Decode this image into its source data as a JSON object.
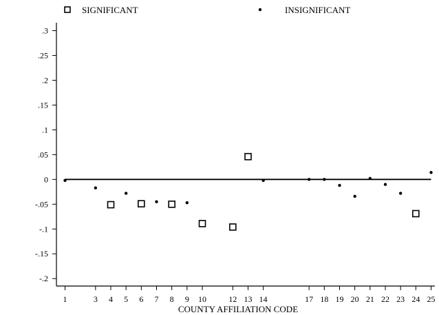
{
  "legend": {
    "significant_label": "SIGNIFICANT",
    "insignificant_label": "INSIGNIFICANT"
  },
  "chart_data": {
    "type": "scatter",
    "title": "",
    "xlabel": "COUNTY AFFILIATION CODE",
    "ylabel": "",
    "xlim": [
      1,
      25
    ],
    "ylim": [
      -0.2,
      0.3
    ],
    "x_ticks": [
      1,
      3,
      4,
      5,
      6,
      7,
      8,
      9,
      10,
      12,
      13,
      14,
      17,
      18,
      19,
      20,
      21,
      22,
      23,
      24,
      25
    ],
    "y_ticks": [
      {
        "value": 0.3,
        "label": ".3"
      },
      {
        "value": 0.25,
        "label": ".25"
      },
      {
        "value": 0.2,
        "label": ".2"
      },
      {
        "value": 0.15,
        "label": ".15"
      },
      {
        "value": 0.1,
        "label": ".1"
      },
      {
        "value": 0.05,
        "label": ".05"
      },
      {
        "value": 0,
        "label": "0"
      },
      {
        "value": -0.05,
        "label": "-.05"
      },
      {
        "value": -0.1,
        "label": "-.1"
      },
      {
        "value": -0.15,
        "label": "-.15"
      },
      {
        "value": -0.2,
        "label": "-.2"
      }
    ],
    "reference_line": 0,
    "grid": false,
    "legend_position": "top",
    "series": [
      {
        "name": "SIGNIFICANT",
        "marker": "open-square",
        "points": [
          {
            "x": 4,
            "y": -0.051
          },
          {
            "x": 6,
            "y": -0.049
          },
          {
            "x": 8,
            "y": -0.05
          },
          {
            "x": 10,
            "y": -0.089
          },
          {
            "x": 12,
            "y": -0.096
          },
          {
            "x": 13,
            "y": 0.046
          },
          {
            "x": 24,
            "y": -0.069
          }
        ]
      },
      {
        "name": "INSIGNIFICANT",
        "marker": "dot",
        "points": [
          {
            "x": 1,
            "y": -0.002
          },
          {
            "x": 3,
            "y": -0.017
          },
          {
            "x": 5,
            "y": -0.028
          },
          {
            "x": 7,
            "y": -0.045
          },
          {
            "x": 9,
            "y": -0.047
          },
          {
            "x": 14,
            "y": -0.002
          },
          {
            "x": 17,
            "y": 0
          },
          {
            "x": 18,
            "y": 0
          },
          {
            "x": 19,
            "y": -0.012
          },
          {
            "x": 20,
            "y": -0.034
          },
          {
            "x": 21,
            "y": 0.002
          },
          {
            "x": 22,
            "y": -0.01
          },
          {
            "x": 23,
            "y": -0.028
          },
          {
            "x": 25,
            "y": 0.014
          }
        ]
      }
    ]
  }
}
